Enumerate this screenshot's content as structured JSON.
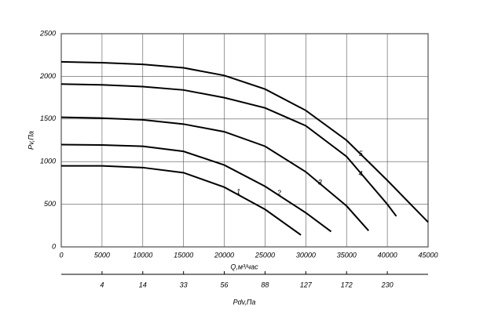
{
  "chart_data": {
    "type": "line",
    "y_label": "Pv,Па",
    "x_label": "Q,м³/час",
    "x2_label": "Pdv,Па",
    "xlim": [
      0,
      45000
    ],
    "ylim": [
      0,
      2500
    ],
    "xticks": [
      0,
      5000,
      10000,
      15000,
      20000,
      25000,
      30000,
      35000,
      40000,
      45000
    ],
    "yticks": [
      0,
      500,
      1000,
      1500,
      2000,
      2500
    ],
    "x2ticks": [
      {
        "value": 5000,
        "label": "4"
      },
      {
        "value": 10000,
        "label": "14"
      },
      {
        "value": 15000,
        "label": "33"
      },
      {
        "value": 20000,
        "label": "56"
      },
      {
        "value": 25000,
        "label": "88"
      },
      {
        "value": 30000,
        "label": "127"
      },
      {
        "value": 35000,
        "label": "172"
      },
      {
        "value": 40000,
        "label": "230"
      }
    ],
    "grid": true,
    "series": [
      {
        "name": "1",
        "color": "#000000",
        "x": [
          0,
          5000,
          10000,
          15000,
          20000,
          25000,
          29400
        ],
        "values": [
          950,
          950,
          930,
          870,
          700,
          440,
          140
        ]
      },
      {
        "name": "2",
        "color": "#000000",
        "x": [
          0,
          5000,
          10000,
          15000,
          20000,
          25000,
          30000,
          33100
        ],
        "values": [
          1200,
          1195,
          1180,
          1120,
          960,
          710,
          400,
          180
        ]
      },
      {
        "name": "3",
        "color": "#000000",
        "x": [
          0,
          5000,
          10000,
          15000,
          20000,
          25000,
          30000,
          35000,
          37700
        ],
        "values": [
          1520,
          1510,
          1490,
          1440,
          1350,
          1180,
          880,
          480,
          190
        ]
      },
      {
        "name": "4",
        "color": "#000000",
        "x": [
          0,
          5000,
          10000,
          15000,
          20000,
          25000,
          30000,
          35000,
          40000,
          41100
        ],
        "values": [
          1910,
          1900,
          1880,
          1840,
          1750,
          1630,
          1420,
          1060,
          500,
          360
        ]
      },
      {
        "name": "5",
        "color": "#000000",
        "x": [
          0,
          5000,
          10000,
          15000,
          20000,
          25000,
          30000,
          35000,
          40000,
          45000
        ],
        "values": [
          2170,
          2160,
          2140,
          2100,
          2010,
          1850,
          1600,
          1250,
          780,
          290
        ]
      }
    ]
  }
}
